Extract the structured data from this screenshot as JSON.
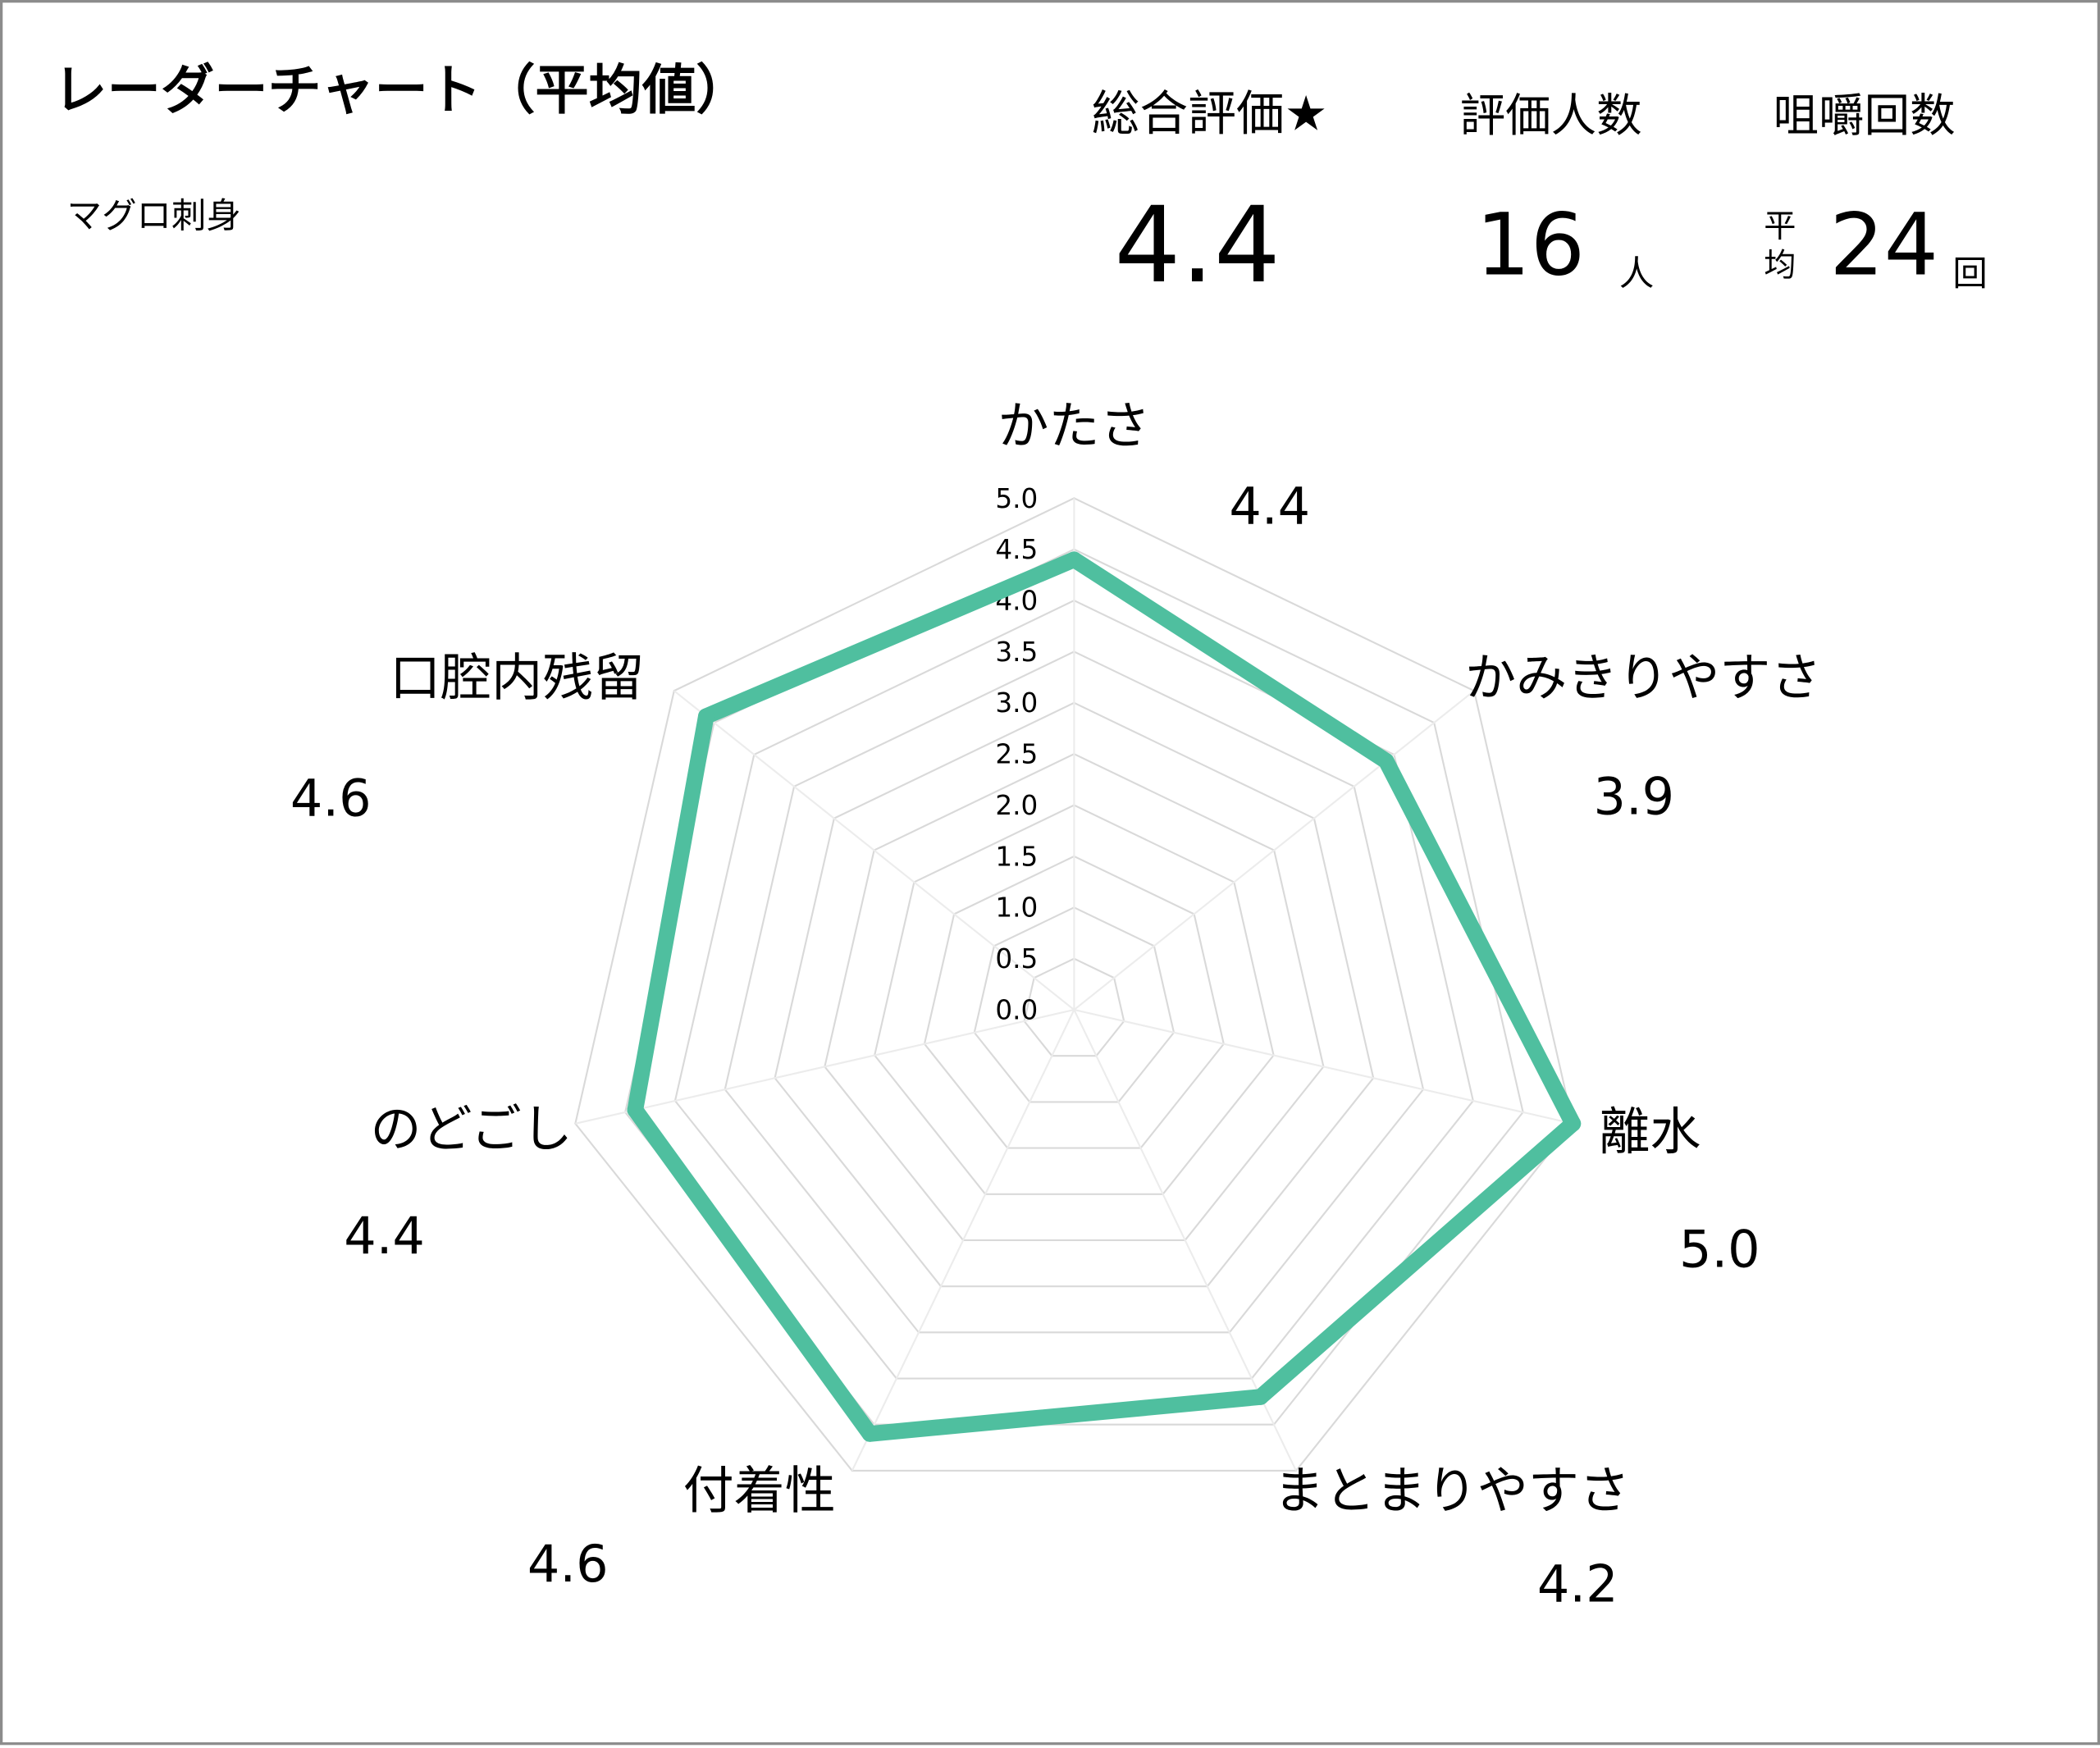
{
  "title": "レーダーチャート（平均値）",
  "subtitle": "マグロ刺身",
  "summary": {
    "overall_label": "総合評価★",
    "overall_value": "4.4",
    "raters_label": "評価人数",
    "raters_value": "16",
    "raters_unit": "人",
    "chews_label": "咀嚼回数",
    "chews_prefix_1": "平",
    "chews_prefix_2": "均",
    "chews_value": "24",
    "chews_unit": "回"
  },
  "chart_data": {
    "type": "radar",
    "categories": [
      "かたさ",
      "かみきりやすさ",
      "離水",
      "まとまりやすさ",
      "付着性",
      "のどごし",
      "口腔内残留"
    ],
    "values": [
      4.4,
      3.9,
      5.0,
      4.2,
      4.6,
      4.4,
      4.6
    ],
    "value_labels": [
      "4.4",
      "3.9",
      "5.0",
      "4.2",
      "4.6",
      "4.4",
      "4.6"
    ],
    "rlim": [
      0,
      5
    ],
    "ticks": [
      "0.0",
      "0.5",
      "1.0",
      "1.5",
      "2.0",
      "2.5",
      "3.0",
      "3.5",
      "4.0",
      "4.5",
      "5.0"
    ],
    "series_color": "#4fbf9f",
    "grid_color": "#d9d9d9",
    "legend": "none"
  }
}
